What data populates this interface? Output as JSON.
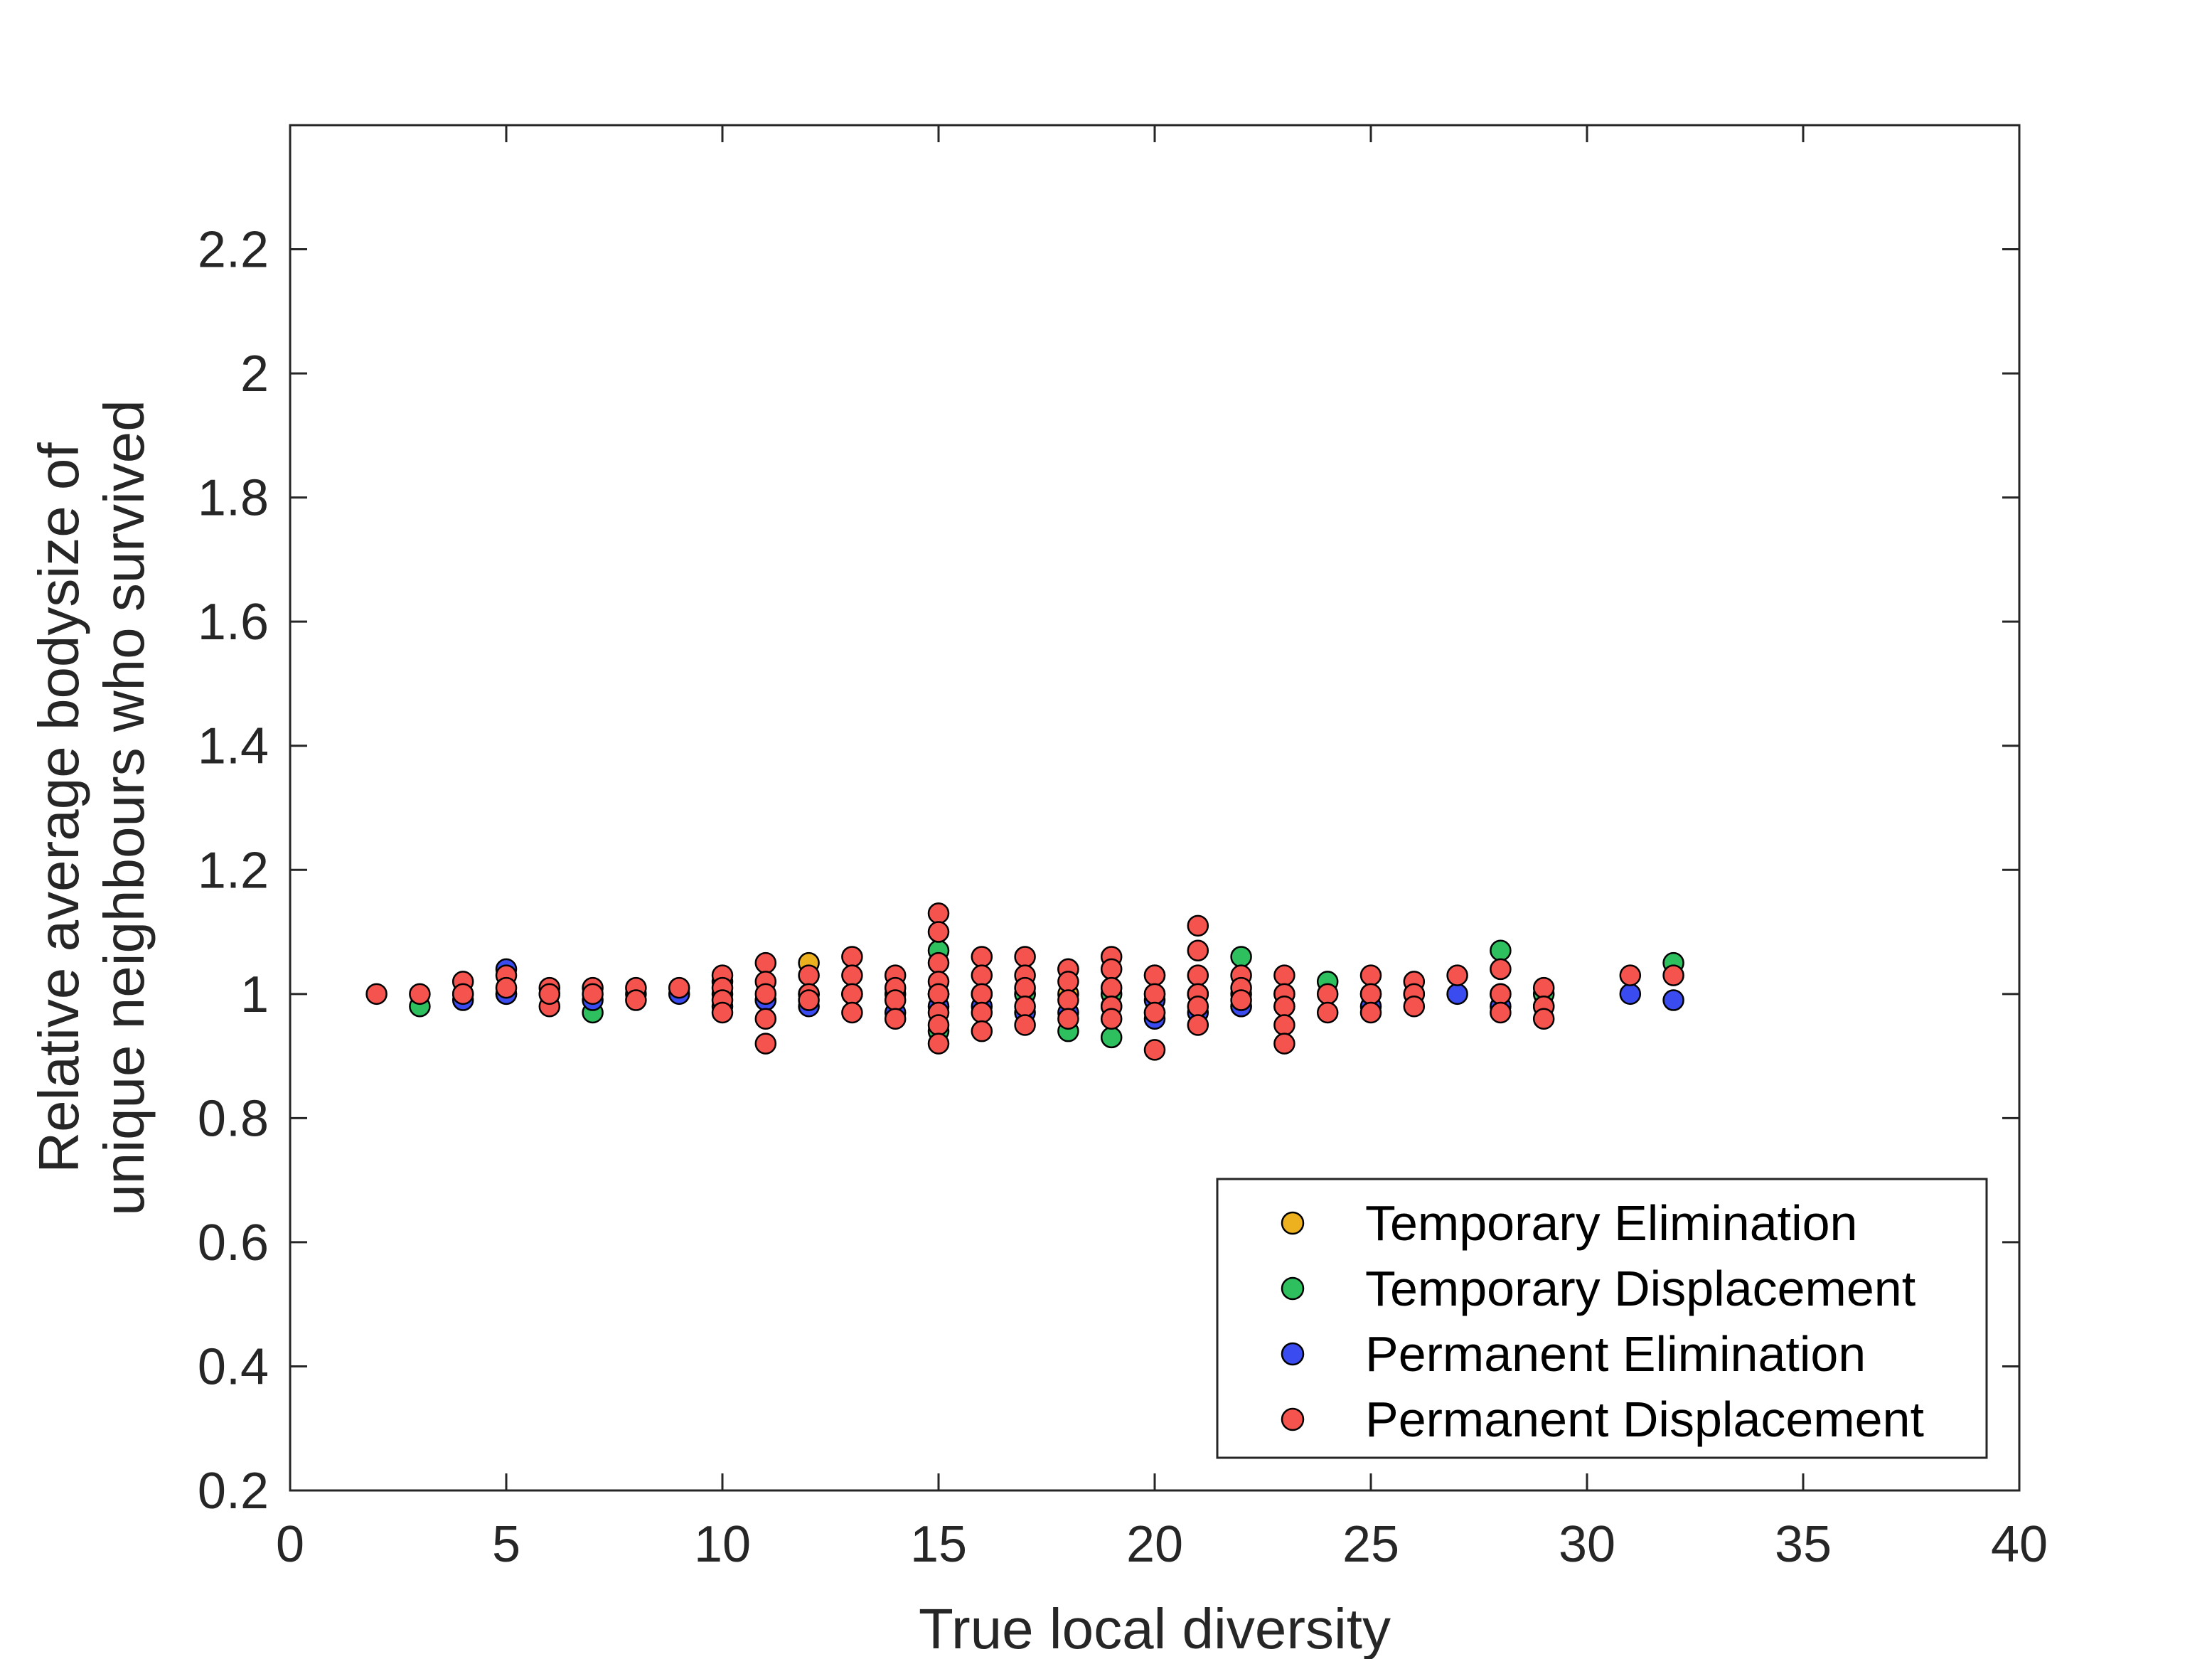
{
  "chart_data": {
    "type": "scatter",
    "title": "",
    "xlabel": "True local diversity",
    "ylabel_lines": [
      "Relative average bodysize of",
      "unique neighbours who survived"
    ],
    "xlim": [
      0,
      40
    ],
    "ylim": [
      0.2,
      2.4
    ],
    "xticks": [
      0,
      5,
      10,
      15,
      20,
      25,
      30,
      35,
      40
    ],
    "yticks": [
      0.2,
      0.4,
      0.6,
      0.8,
      1,
      1.2,
      1.4,
      1.6,
      1.8,
      2,
      2.2
    ],
    "grid": false,
    "legend_position": "bottom-right",
    "series": [
      {
        "name": "Temporary Elimination",
        "color": "#EDB120",
        "points": [
          [
            12,
            1.05
          ],
          [
            12,
            1.0
          ],
          [
            13,
            1.0
          ],
          [
            15,
            1.0
          ],
          [
            16,
            1.0
          ],
          [
            17,
            1.0
          ],
          [
            18,
            1.0
          ],
          [
            20,
            1.0
          ],
          [
            21,
            1.0
          ],
          [
            22,
            1.0
          ]
        ]
      },
      {
        "name": "Temporary Displacement",
        "color": "#2EC05F",
        "points": [
          [
            3,
            0.98
          ],
          [
            4,
            1.0
          ],
          [
            5,
            1.0
          ],
          [
            6,
            1.0
          ],
          [
            7,
            0.97
          ],
          [
            8,
            1.0
          ],
          [
            10,
            1.0
          ],
          [
            10,
            1.02
          ],
          [
            11,
            0.99
          ],
          [
            12,
            1.0
          ],
          [
            13,
            1.0
          ],
          [
            14,
            1.0
          ],
          [
            15,
            1.07
          ],
          [
            15,
            0.94
          ],
          [
            15,
            1.0
          ],
          [
            16,
            1.0
          ],
          [
            17,
            1.0
          ],
          [
            18,
            1.04
          ],
          [
            18,
            0.94
          ],
          [
            19,
            0.93
          ],
          [
            19,
            1.0
          ],
          [
            20,
            1.03
          ],
          [
            20,
            0.97
          ],
          [
            21,
            1.0
          ],
          [
            22,
            1.06
          ],
          [
            22,
            0.98
          ],
          [
            23,
            1.0
          ],
          [
            24,
            1.02
          ],
          [
            25,
            1.0
          ],
          [
            26,
            1.0
          ],
          [
            28,
            1.07
          ],
          [
            28,
            1.0
          ],
          [
            29,
            1.0
          ],
          [
            32,
            1.05
          ]
        ]
      },
      {
        "name": "Permanent Elimination",
        "color": "#3A4CF0",
        "points": [
          [
            4,
            0.99
          ],
          [
            5,
            1.04
          ],
          [
            5,
            1.0
          ],
          [
            7,
            0.99
          ],
          [
            9,
            1.0
          ],
          [
            10,
            0.98
          ],
          [
            11,
            0.99
          ],
          [
            12,
            0.98
          ],
          [
            14,
            0.97
          ],
          [
            15,
            0.98
          ],
          [
            16,
            0.98
          ],
          [
            17,
            0.97
          ],
          [
            18,
            0.97
          ],
          [
            19,
            0.98
          ],
          [
            20,
            0.96
          ],
          [
            20,
            0.99
          ],
          [
            21,
            0.97
          ],
          [
            22,
            0.98
          ],
          [
            23,
            0.98
          ],
          [
            25,
            0.98
          ],
          [
            27,
            1.0
          ],
          [
            28,
            0.98
          ],
          [
            29,
            0.98
          ],
          [
            31,
            1.0
          ],
          [
            32,
            0.99
          ]
        ]
      },
      {
        "name": "Permanent Displacement",
        "color": "#F5534E",
        "points": [
          [
            2,
            1.0
          ],
          [
            3,
            1.0
          ],
          [
            4,
            1.02
          ],
          [
            4,
            1.0
          ],
          [
            5,
            1.03
          ],
          [
            5,
            1.01
          ],
          [
            6,
            1.01
          ],
          [
            6,
            0.98
          ],
          [
            6,
            1.0
          ],
          [
            7,
            1.01
          ],
          [
            7,
            1.0
          ],
          [
            8,
            1.01
          ],
          [
            8,
            0.99
          ],
          [
            9,
            1.01
          ],
          [
            10,
            1.03
          ],
          [
            10,
            1.01
          ],
          [
            10,
            0.99
          ],
          [
            10,
            0.97
          ],
          [
            11,
            1.05
          ],
          [
            11,
            1.02
          ],
          [
            11,
            1.0
          ],
          [
            11,
            0.96
          ],
          [
            11,
            0.92
          ],
          [
            12,
            1.03
          ],
          [
            12,
            1.0
          ],
          [
            12,
            0.99
          ],
          [
            13,
            1.06
          ],
          [
            13,
            1.03
          ],
          [
            13,
            1.0
          ],
          [
            13,
            0.97
          ],
          [
            14,
            1.03
          ],
          [
            14,
            1.01
          ],
          [
            14,
            0.99
          ],
          [
            14,
            0.96
          ],
          [
            15,
            1.13
          ],
          [
            15,
            1.1
          ],
          [
            15,
            1.05
          ],
          [
            15,
            1.02
          ],
          [
            15,
            1.0
          ],
          [
            15,
            0.97
          ],
          [
            15,
            0.95
          ],
          [
            15,
            0.92
          ],
          [
            16,
            1.06
          ],
          [
            16,
            1.03
          ],
          [
            16,
            1.0
          ],
          [
            16,
            0.97
          ],
          [
            16,
            0.94
          ],
          [
            17,
            1.06
          ],
          [
            17,
            1.03
          ],
          [
            17,
            1.01
          ],
          [
            17,
            0.98
          ],
          [
            17,
            0.95
          ],
          [
            18,
            1.04
          ],
          [
            18,
            1.02
          ],
          [
            18,
            0.99
          ],
          [
            18,
            0.96
          ],
          [
            19,
            1.06
          ],
          [
            19,
            1.04
          ],
          [
            19,
            1.01
          ],
          [
            19,
            0.98
          ],
          [
            19,
            0.96
          ],
          [
            20,
            1.03
          ],
          [
            20,
            1.0
          ],
          [
            20,
            0.97
          ],
          [
            20,
            0.91
          ],
          [
            21,
            1.11
          ],
          [
            21,
            1.07
          ],
          [
            21,
            1.03
          ],
          [
            21,
            1.0
          ],
          [
            21,
            0.98
          ],
          [
            21,
            0.95
          ],
          [
            22,
            1.03
          ],
          [
            22,
            1.01
          ],
          [
            22,
            0.99
          ],
          [
            23,
            1.03
          ],
          [
            23,
            1.0
          ],
          [
            23,
            0.98
          ],
          [
            23,
            0.95
          ],
          [
            23,
            0.92
          ],
          [
            24,
            1.0
          ],
          [
            24,
            0.97
          ],
          [
            25,
            1.03
          ],
          [
            25,
            1.0
          ],
          [
            25,
            0.97
          ],
          [
            26,
            1.02
          ],
          [
            26,
            1.0
          ],
          [
            26,
            0.98
          ],
          [
            27,
            1.03
          ],
          [
            28,
            1.04
          ],
          [
            28,
            1.0
          ],
          [
            28,
            0.97
          ],
          [
            29,
            1.01
          ],
          [
            29,
            0.98
          ],
          [
            29,
            0.96
          ],
          [
            31,
            1.03
          ],
          [
            32,
            1.03
          ]
        ]
      }
    ]
  }
}
